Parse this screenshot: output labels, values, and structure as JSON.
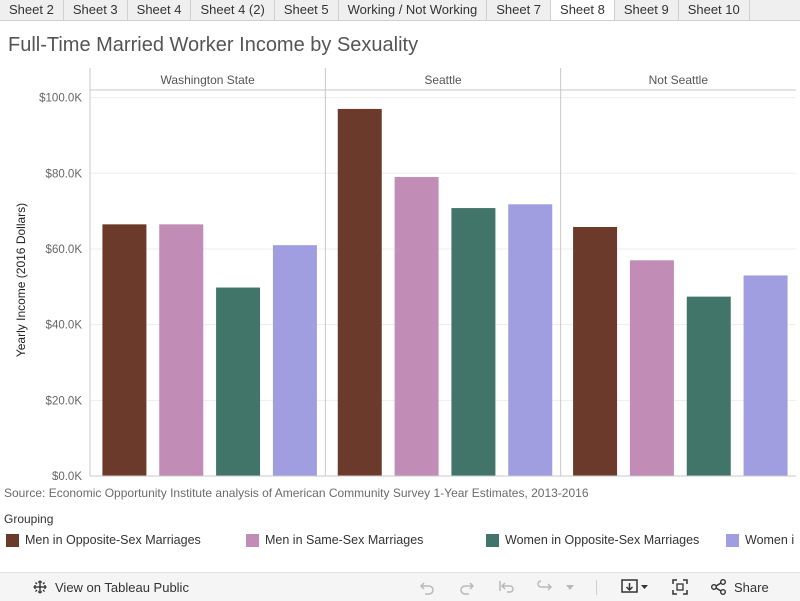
{
  "tabs": [
    {
      "label": "Sheet 2",
      "active": false
    },
    {
      "label": "Sheet 3",
      "active": false
    },
    {
      "label": "Sheet 4",
      "active": false
    },
    {
      "label": "Sheet 4 (2)",
      "active": false
    },
    {
      "label": "Sheet 5",
      "active": false
    },
    {
      "label": "Working / Not Working",
      "active": false
    },
    {
      "label": "Sheet 7",
      "active": false
    },
    {
      "label": "Sheet 8",
      "active": true
    },
    {
      "label": "Sheet 9",
      "active": false
    },
    {
      "label": "Sheet 10",
      "active": false
    }
  ],
  "chart_data": {
    "type": "bar",
    "title": "Full-Time Married Worker Income by Sexuality",
    "ylabel": "Yearly Income (2016 Dollars)",
    "xlabel": "",
    "ylim": [
      0,
      102000
    ],
    "yticks": [
      0,
      20000,
      40000,
      60000,
      80000,
      100000
    ],
    "ytick_labels": [
      "$0.0K",
      "$20.0K",
      "$40.0K",
      "$60.0K",
      "$80.0K",
      "$100.0K"
    ],
    "grid": true,
    "panels": [
      "Washington State",
      "Seattle",
      "Not Seattle"
    ],
    "series": [
      {
        "name": "Men in Opposite-Sex Marriages",
        "color": "#6b3a2a",
        "values": [
          66500,
          97000,
          65800
        ]
      },
      {
        "name": "Men in Same-Sex Marriages",
        "color": "#c18cb6",
        "values": [
          66500,
          79000,
          57000
        ]
      },
      {
        "name": "Women in Opposite-Sex Marriages",
        "color": "#42756a",
        "values": [
          49800,
          70800,
          47400
        ]
      },
      {
        "name": "Women in Same-Sex Marriages",
        "color": "#a09ee0",
        "values": [
          61000,
          71800,
          53000
        ]
      }
    ],
    "legend_title": "Grouping",
    "legend_position": "bottom",
    "source": "Source: Economic Opportunity Institute analysis of American Community Survey 1-Year Estimates, 2013-2016"
  },
  "legend": {
    "labels": [
      "Men in Opposite-Sex Marriages",
      "Men in Same-Sex Marriages",
      "Women in Opposite-Sex Marriages",
      "Women i"
    ]
  },
  "toolbar": {
    "view_label": "View on Tableau Public",
    "share_label": "Share",
    "icons": [
      "tableau-logo-icon",
      "undo-icon",
      "redo-icon",
      "revert-icon",
      "refresh-icon",
      "pause-dropdown-icon",
      "download-icon",
      "fullscreen-icon",
      "share-icon"
    ]
  }
}
